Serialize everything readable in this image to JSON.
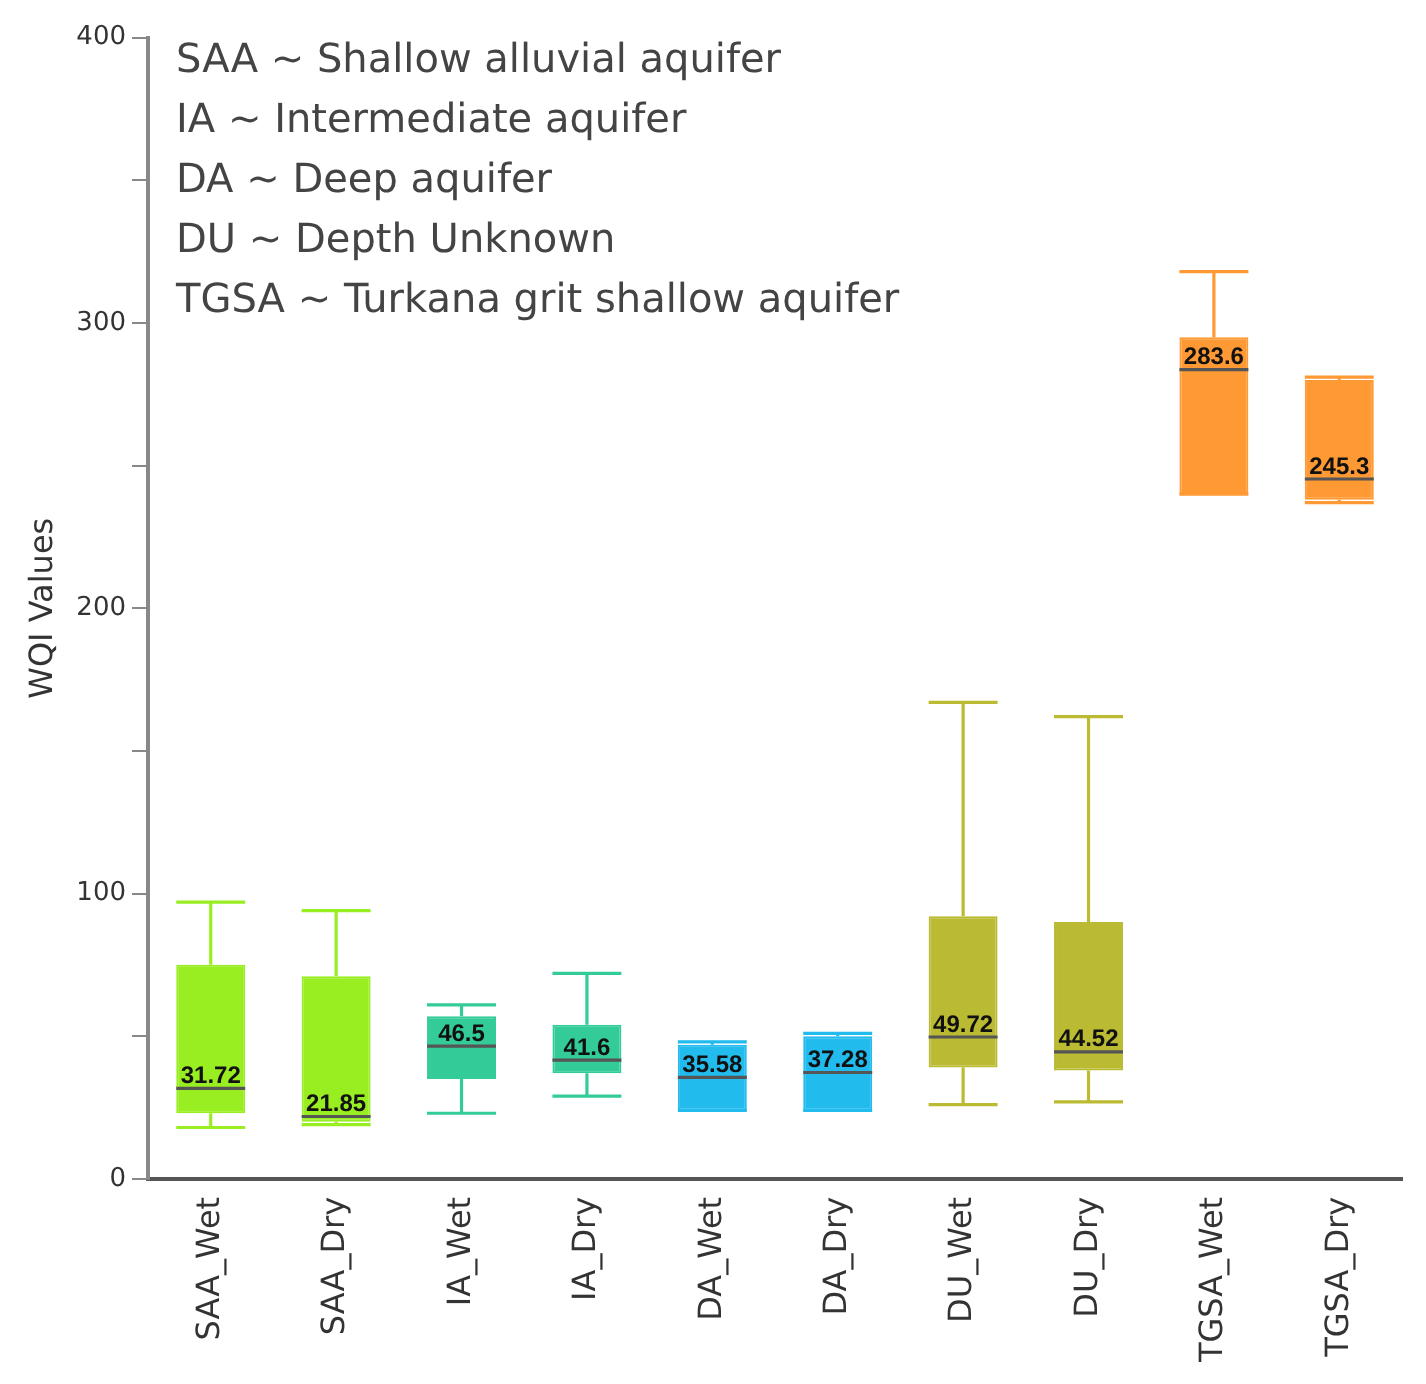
{
  "chart_data": {
    "type": "box",
    "ylabel": "WQI Values",
    "categories": [
      "SAA_Wet",
      "SAA_Dry",
      "IA_Wet",
      "IA_Dry",
      "DA_Wet",
      "DA_Dry",
      "DU_Wet",
      "DU_Dry",
      "TGSA_Wet",
      "TGSA_Dry"
    ],
    "colors": [
      "#99ee22",
      "#99ee22",
      "#33cc99",
      "#33cc99",
      "#22bbee",
      "#22bbee",
      "#bbbb33",
      "#bbbb33",
      "#ff9933",
      "#ff9933"
    ],
    "boxes": [
      {
        "low": 18,
        "q1": 23,
        "median": 31.72,
        "q3": 75,
        "high": 97
      },
      {
        "low": 19,
        "q1": 20,
        "median": 21.85,
        "q3": 71,
        "high": 94
      },
      {
        "low": 23,
        "q1": 35,
        "median": 46.5,
        "q3": 57,
        "high": 61
      },
      {
        "low": 29,
        "q1": 37,
        "median": 41.6,
        "q3": 54,
        "high": 72
      },
      {
        "low": 24,
        "q1": 24,
        "median": 35.58,
        "q3": 47,
        "high": 48
      },
      {
        "low": 24,
        "q1": 24,
        "median": 37.28,
        "q3": 50,
        "high": 51
      },
      {
        "low": 26,
        "q1": 39,
        "median": 49.72,
        "q3": 92,
        "high": 167
      },
      {
        "low": 27,
        "q1": 38,
        "median": 44.52,
        "q3": 90,
        "high": 162
      },
      {
        "low": 240,
        "q1": 240,
        "median": 283.6,
        "q3": 295,
        "high": 318
      },
      {
        "low": 237,
        "q1": 238,
        "median": 245.3,
        "q3": 280,
        "high": 281
      }
    ],
    "ylim": [
      0,
      400
    ],
    "yticks": [
      0,
      {
        "value": 50,
        "label": null
      },
      100,
      {
        "value": 150,
        "label": null
      },
      200,
      {
        "value": 250,
        "label": null
      },
      300,
      {
        "value": 350,
        "label": null
      },
      400
    ],
    "annotations": [
      "SAA ~ Shallow alluvial aquifer",
      "IA ~ Intermediate aquifer",
      "DA ~ Deep aquifer",
      "DU ~ Depth Unknown",
      "TGSA ~ Turkana grit shallow aquifer",
      {
        "text": "31.72",
        "x": "SAA_Wet",
        "y": 31.72
      },
      {
        "text": "21.85",
        "x": "SAA_Dry",
        "y": 21.85
      },
      {
        "text": "46.5",
        "x": "IA_Wet",
        "y": 46.5
      },
      {
        "text": "41.6",
        "x": "IA_Dry",
        "y": 41.6
      },
      {
        "text": "35.58",
        "x": "DA_Wet",
        "y": 35.58
      },
      {
        "text": "37.28",
        "x": "DA_Dry",
        "y": 37.28
      },
      {
        "text": "49.72",
        "x": "DU_Wet",
        "y": 49.72
      },
      {
        "text": "44.52",
        "x": "DU_Dry",
        "y": 44.52
      },
      {
        "text": "283.6",
        "x": "TGSA_Wet",
        "y": 283.6
      },
      {
        "text": "245.3",
        "x": "TGSA_Dry",
        "y": 245.3
      }
    ]
  }
}
